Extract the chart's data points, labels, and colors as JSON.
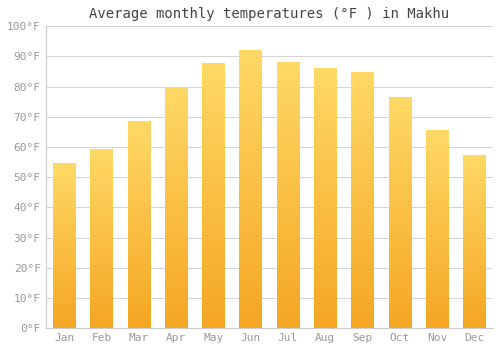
{
  "title": "Average monthly temperatures (°F ) in Makhu",
  "months": [
    "Jan",
    "Feb",
    "Mar",
    "Apr",
    "May",
    "Jun",
    "Jul",
    "Aug",
    "Sep",
    "Oct",
    "Nov",
    "Dec"
  ],
  "values": [
    54.5,
    59.0,
    68.5,
    79.5,
    87.5,
    92.0,
    88.0,
    86.0,
    84.5,
    76.5,
    65.5,
    57.0
  ],
  "ylim": [
    0,
    100
  ],
  "yticks": [
    0,
    10,
    20,
    30,
    40,
    50,
    60,
    70,
    80,
    90,
    100
  ],
  "ytick_labels": [
    "0°F",
    "10°F",
    "20°F",
    "30°F",
    "40°F",
    "50°F",
    "60°F",
    "70°F",
    "80°F",
    "90°F",
    "100°F"
  ],
  "background_color": "#FFFFFF",
  "grid_color": "#CCCCCC",
  "title_fontsize": 10,
  "tick_fontsize": 8,
  "bar_width": 0.6,
  "bar_color_bottom": "#F5A623",
  "bar_color_top": "#FFD966",
  "tick_color": "#999999",
  "title_color": "#444444"
}
